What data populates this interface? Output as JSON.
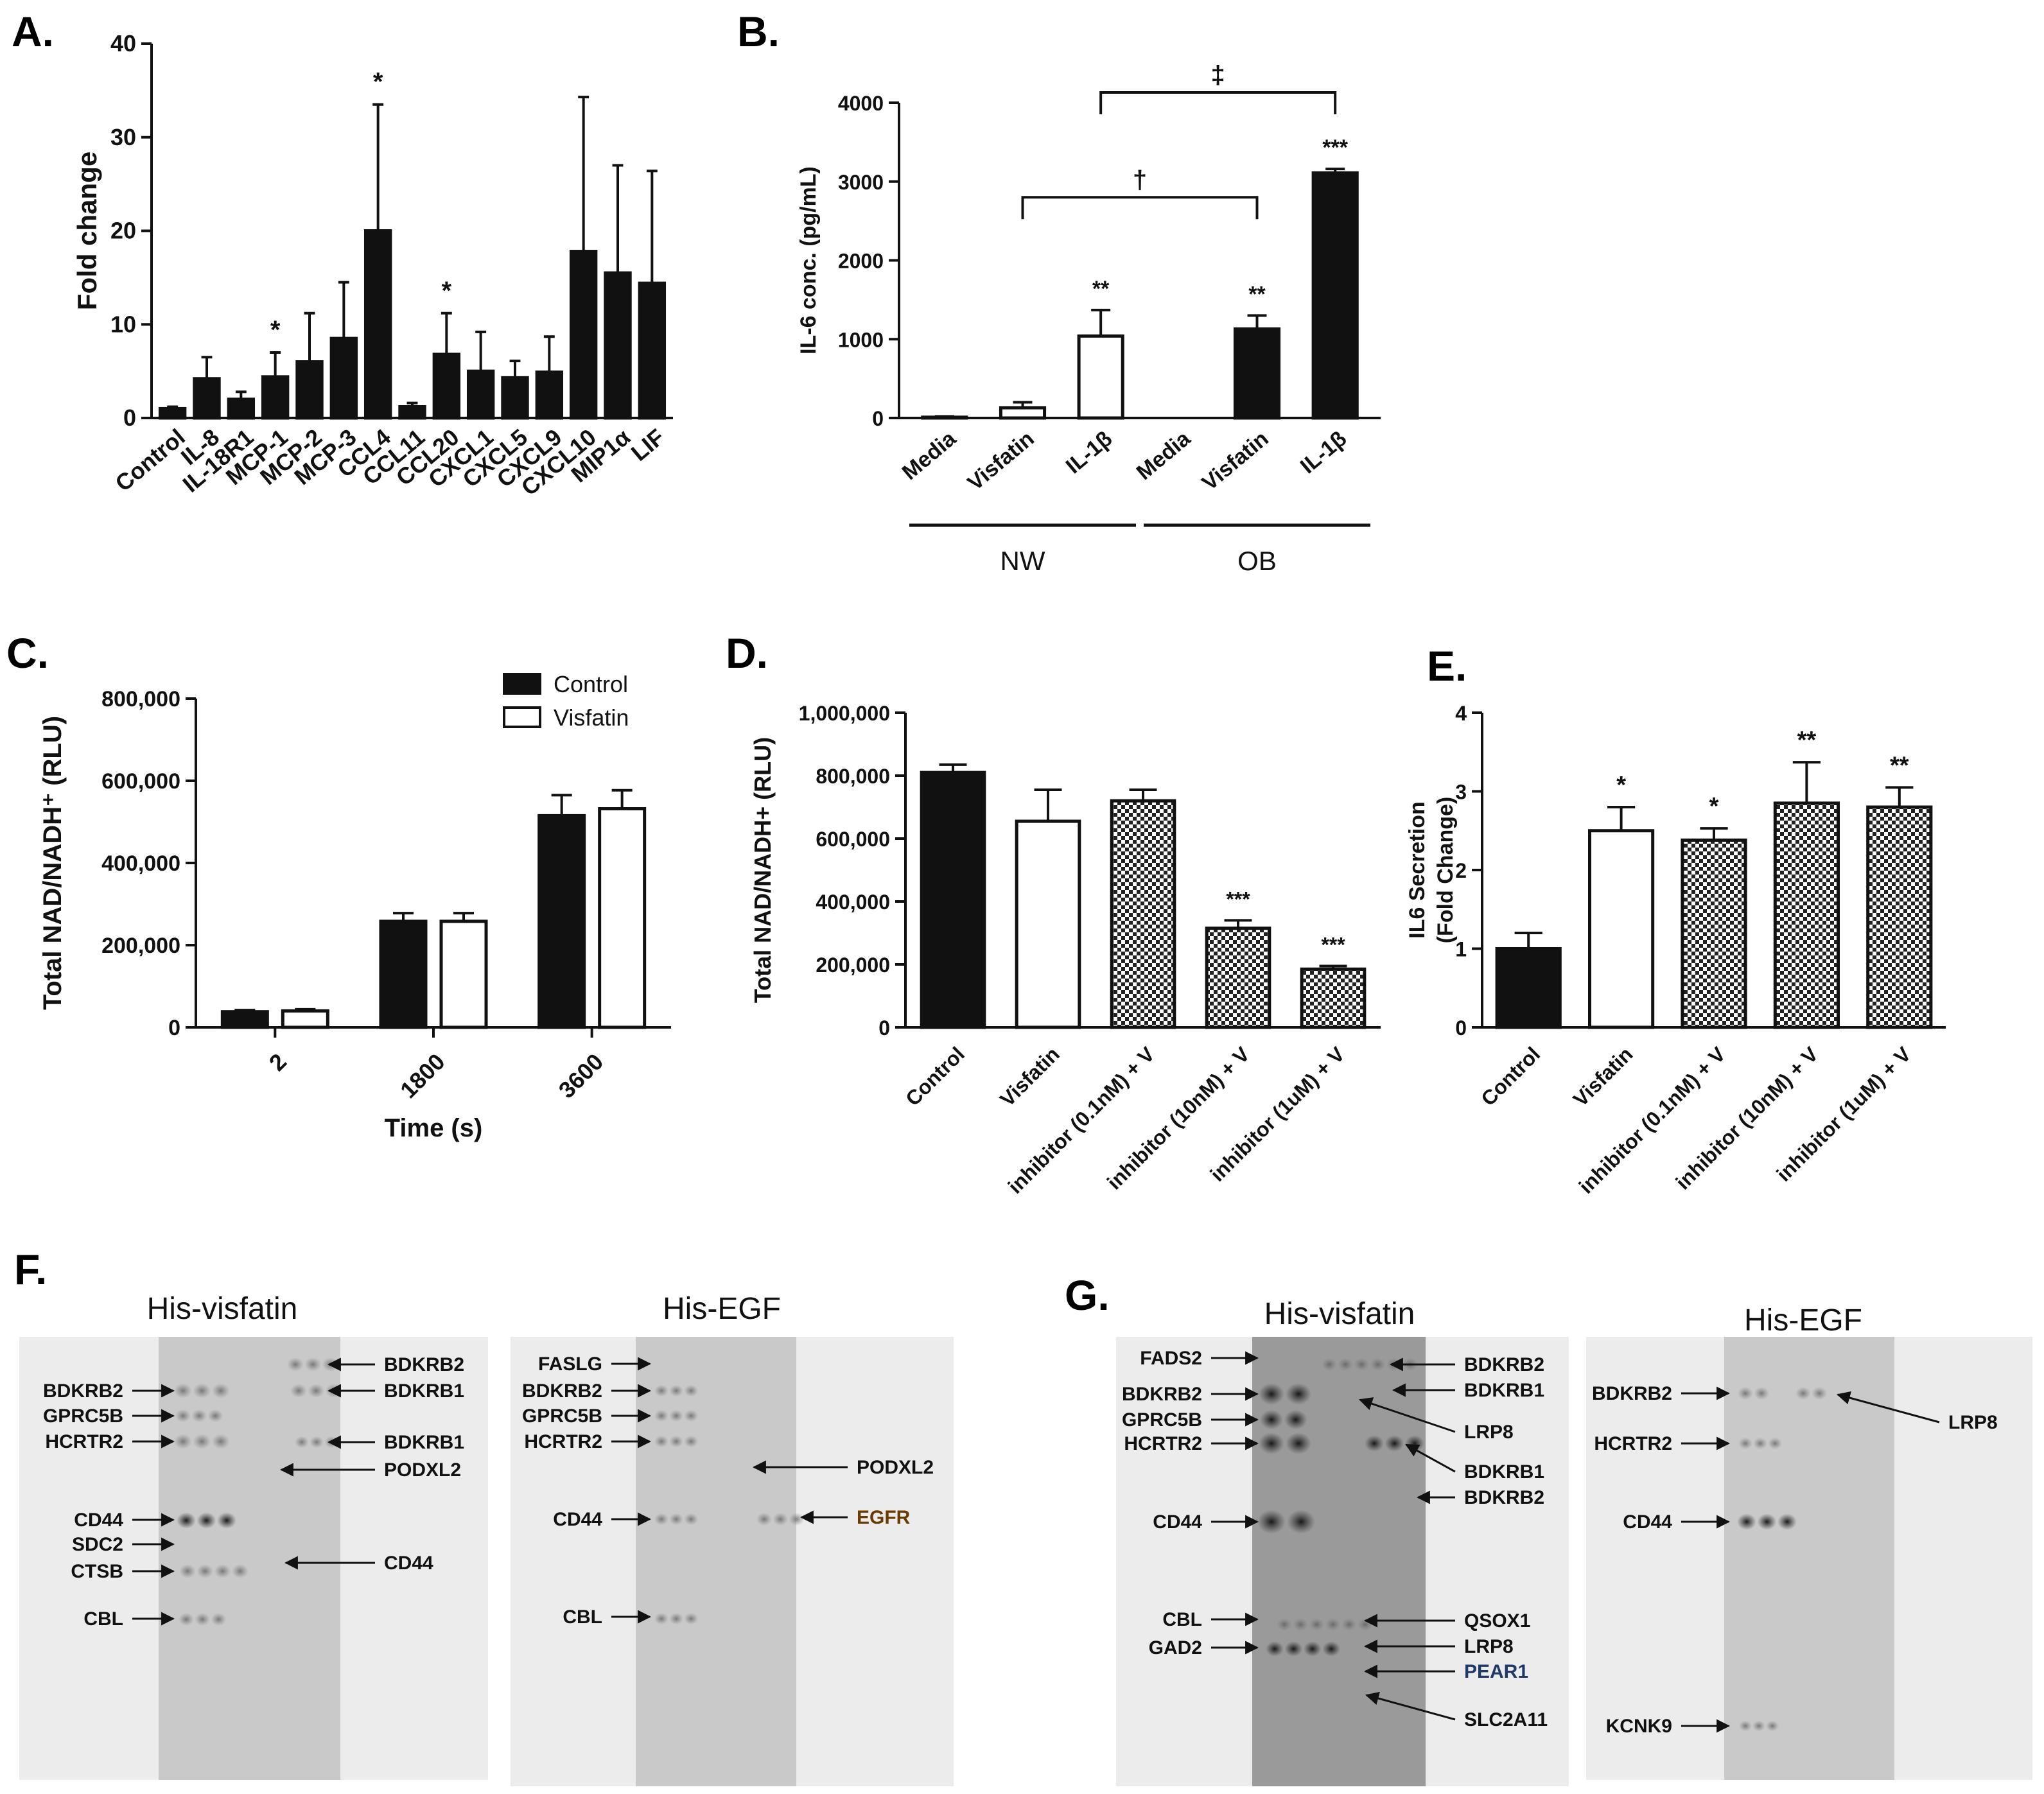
{
  "panel_labels": {
    "A": "A.",
    "B": "B.",
    "C": "C.",
    "D": "D.",
    "E": "E.",
    "F": "F.",
    "G": "G."
  },
  "chart_data": [
    {
      "id": "A",
      "type": "bar",
      "ylabel": "Fold change",
      "ylim": [
        0,
        40
      ],
      "yticks": [
        0,
        10,
        20,
        30,
        40
      ],
      "categories": [
        "Control",
        "IL-8",
        "IL-18R1",
        "MCP-1",
        "MCP-2",
        "MCP-3",
        "CCL4",
        "CCL11",
        "CCL20",
        "CXCL1",
        "CXCL5",
        "CXCL9",
        "CXCL10",
        "MIP1α",
        "LIF"
      ],
      "values": [
        1.0,
        4.2,
        2.0,
        4.4,
        6.0,
        8.5,
        20.0,
        1.2,
        6.8,
        5.0,
        4.3,
        4.9,
        17.8,
        15.5,
        14.4
      ],
      "errors": [
        0.2,
        2.3,
        0.8,
        2.6,
        5.2,
        6.0,
        13.5,
        0.4,
        4.4,
        4.2,
        1.8,
        3.8,
        16.5,
        11.5,
        12.0
      ],
      "annotations": [
        "",
        "",
        "",
        "*",
        "",
        "",
        "*",
        "",
        "*",
        "",
        "",
        "",
        "",
        "",
        ""
      ]
    },
    {
      "id": "B",
      "type": "bar",
      "ylabel": "IL-6 conc. (pg/mL)",
      "ylim": [
        0,
        4000
      ],
      "yticks": [
        0,
        1000,
        2000,
        3000,
        4000
      ],
      "categories": [
        "Media",
        "Visfatin",
        "IL-1β",
        "Media",
        "Visfatin",
        "IL-1β"
      ],
      "groups": [
        "NW",
        "NW",
        "NW",
        "OB",
        "OB",
        "OB"
      ],
      "group_labels": [
        "NW",
        "OB"
      ],
      "values": [
        10,
        130,
        1040,
        0,
        1130,
        3110
      ],
      "errors": [
        10,
        70,
        330,
        0,
        170,
        50
      ],
      "fill": [
        "open",
        "open",
        "open",
        "solid",
        "solid",
        "solid"
      ],
      "annotations": [
        "",
        "",
        "**",
        "",
        "**",
        "***"
      ],
      "brackets": [
        {
          "from": 1,
          "to": 4,
          "label": "†",
          "y": 2800
        },
        {
          "from": 2,
          "to": 5,
          "label": "‡",
          "y": 4130
        }
      ]
    },
    {
      "id": "C",
      "type": "bar",
      "ylabel": "Total NAD/NADH⁺ (RLU)",
      "xlabel": "Time (s)",
      "ylim": [
        0,
        800000
      ],
      "yticks": [
        0,
        200000,
        400000,
        600000,
        800000
      ],
      "ytick_labels": [
        "0",
        "200,000",
        "400,000",
        "600,000",
        "800,000"
      ],
      "categories": [
        "2",
        "1800",
        "3600"
      ],
      "series": [
        {
          "name": "Control",
          "values": [
            38000,
            258000,
            515000
          ],
          "errors": [
            4000,
            20000,
            50000
          ],
          "fill": "solid"
        },
        {
          "name": "Visfatin",
          "values": [
            40000,
            258000,
            532000
          ],
          "errors": [
            4000,
            20000,
            45000
          ],
          "fill": "open"
        }
      ],
      "legend": "top-right"
    },
    {
      "id": "D",
      "type": "bar",
      "ylabel": "Total NAD/NADH+ (RLU)",
      "ylim": [
        0,
        1000000
      ],
      "yticks": [
        0,
        200000,
        400000,
        600000,
        800000,
        1000000
      ],
      "ytick_labels": [
        "0",
        "200,000",
        "400,000",
        "600,000",
        "800,000",
        "1,000,000"
      ],
      "categories": [
        "Control",
        "Visfatin",
        "inhibitor (0.1nM) + V",
        "inhibitor (10nM) + V",
        "inhibitor (1uM) + V"
      ],
      "values": [
        810000,
        655000,
        720000,
        315000,
        185000
      ],
      "errors": [
        25000,
        100000,
        35000,
        25000,
        10000
      ],
      "fill": [
        "solid",
        "open",
        "checker",
        "checker",
        "checker"
      ],
      "annotations": [
        "",
        "",
        "",
        "***",
        "***"
      ]
    },
    {
      "id": "E",
      "type": "bar",
      "ylabel": "IL6 Secretion (Fold Change)",
      "ylabel_lines": [
        "IL6 Secretion",
        "(Fold Change)"
      ],
      "ylim": [
        0,
        4
      ],
      "yticks": [
        0,
        1,
        2,
        3,
        4
      ],
      "categories": [
        "Control",
        "Visfatin",
        "inhibitor (0.1nM) + V",
        "inhibitor (10nM) + V",
        "inhibitor (1uM) + V"
      ],
      "values": [
        1.0,
        2.5,
        2.38,
        2.85,
        2.8
      ],
      "errors": [
        0.2,
        0.3,
        0.15,
        0.52,
        0.25
      ],
      "fill": [
        "solid",
        "open",
        "checker",
        "checker",
        "checker"
      ],
      "annotations": [
        "",
        "*",
        "*",
        "**",
        "**"
      ]
    }
  ],
  "blots": {
    "F": {
      "left": {
        "title": "His-visfatin",
        "left_labels": [
          "BDKRB2",
          "GPRC5B",
          "HCRTR2",
          "CD44",
          "SDC2",
          "CTSB",
          "CBL"
        ],
        "right_labels": [
          "BDKRB2",
          "BDKRB1",
          "BDKRB1",
          "PODXL2",
          "CD44"
        ]
      },
      "right": {
        "title": "His-EGF",
        "left_labels": [
          "FASLG",
          "BDKRB2",
          "GPRC5B",
          "HCRTR2",
          "CD44",
          "CBL"
        ],
        "right_labels": [
          "PODXL2",
          "EGFR"
        ]
      }
    },
    "G": {
      "left": {
        "title": "His-visfatin",
        "left_labels": [
          "FADS2",
          "BDKRB2",
          "GPRC5B",
          "HCRTR2",
          "CD44",
          "CBL",
          "GAD2"
        ],
        "right_labels": [
          "BDKRB2",
          "BDKRB1",
          "LRP8",
          "BDKRB1",
          "BDKRB2",
          "QSOX1",
          "LRP8",
          "PEAR1",
          "SLC2A11"
        ]
      },
      "right": {
        "title": "His-EGF",
        "left_labels": [
          "BDKRB2",
          "HCRTR2",
          "CD44",
          "KCNK9"
        ],
        "right_labels": [
          "LRP8"
        ]
      }
    }
  },
  "colors": {
    "solid": "#111111",
    "open": "#ffffff",
    "egfr_label": "#6b3a00",
    "pear1_label": "#1f3a68",
    "blot_bg": "#cfcfcf"
  }
}
